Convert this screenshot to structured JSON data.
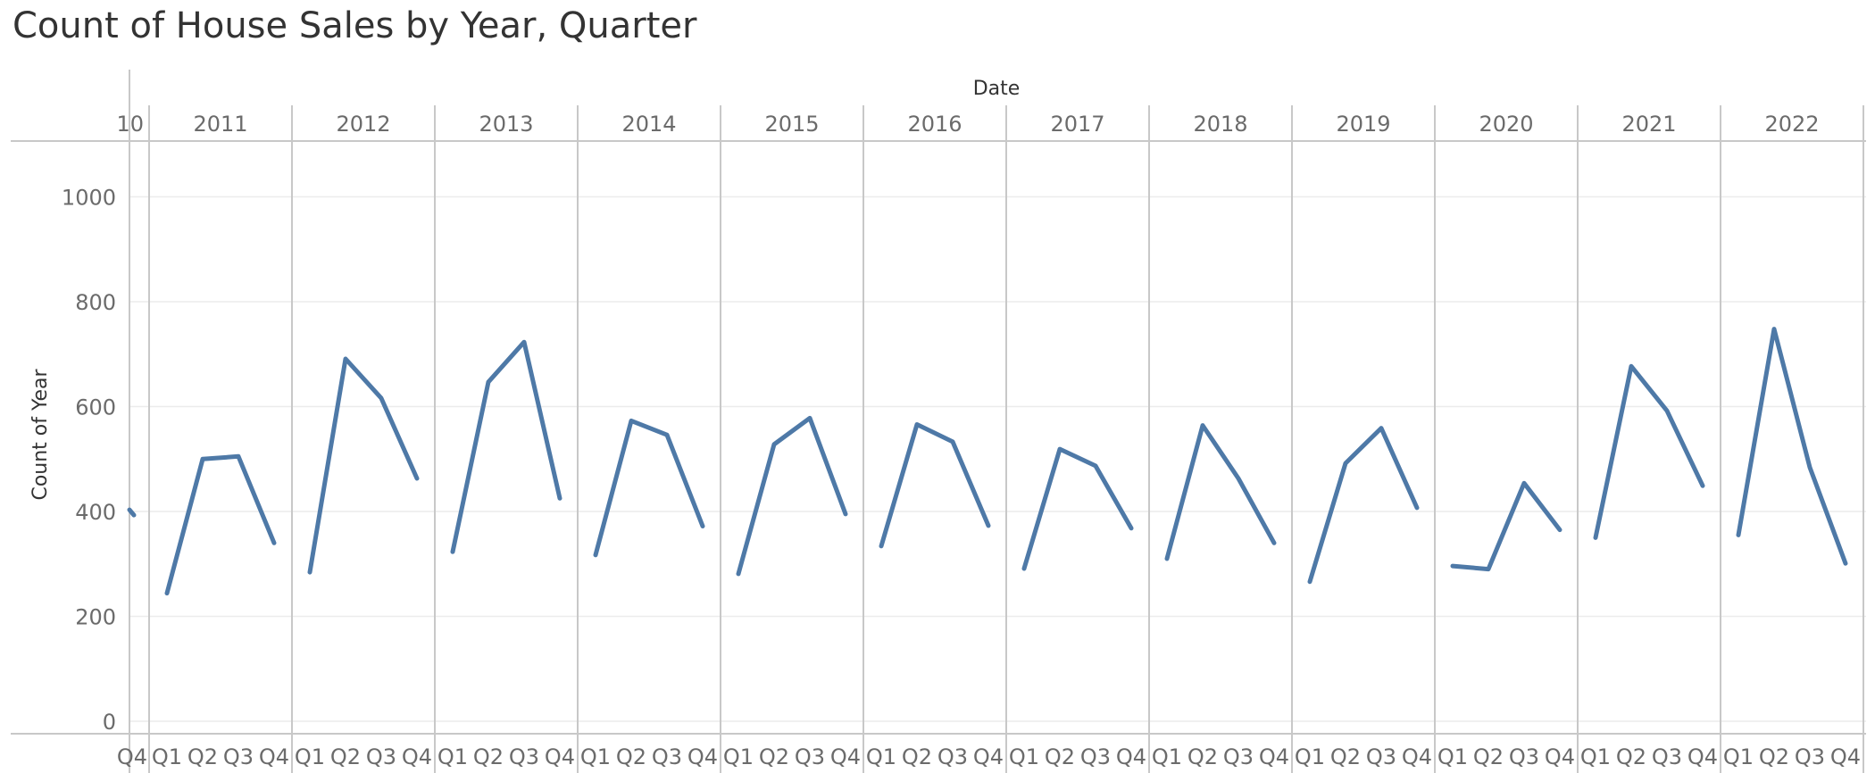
{
  "chart_data": {
    "type": "line",
    "title": "Count of House Sales by Year, Quarter",
    "column_header": "Date",
    "ylabel": "Count of Year",
    "ylim": [
      0,
      1120
    ],
    "yticks": [
      0,
      200,
      400,
      600,
      800,
      1000
    ],
    "quarters": [
      "Q1",
      "Q2",
      "Q3",
      "Q4"
    ],
    "partial_year": {
      "label": "10",
      "quarter": "Q4",
      "value": 393
    },
    "years": [
      {
        "year": "2011",
        "values": [
          244,
          500,
          505,
          340
        ]
      },
      {
        "year": "2012",
        "values": [
          284,
          691,
          616,
          463
        ]
      },
      {
        "year": "2013",
        "values": [
          323,
          647,
          723,
          425
        ]
      },
      {
        "year": "2014",
        "values": [
          317,
          573,
          546,
          372
        ]
      },
      {
        "year": "2015",
        "values": [
          281,
          528,
          578,
          395
        ]
      },
      {
        "year": "2016",
        "values": [
          334,
          566,
          533,
          373
        ]
      },
      {
        "year": "2017",
        "values": [
          291,
          519,
          487,
          368
        ]
      },
      {
        "year": "2018",
        "values": [
          310,
          564,
          463,
          340
        ]
      },
      {
        "year": "2019",
        "values": [
          266,
          492,
          559,
          407
        ]
      },
      {
        "year": "2020",
        "values": [
          296,
          290,
          454,
          365
        ]
      },
      {
        "year": "2021",
        "values": [
          350,
          677,
          592,
          449
        ]
      },
      {
        "year": "2022",
        "values": [
          355,
          748,
          484,
          301
        ]
      }
    ],
    "line_color": "#4e79a7",
    "grid": true
  }
}
